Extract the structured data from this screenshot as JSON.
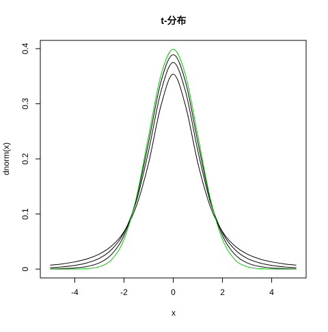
{
  "chart_data": {
    "type": "line",
    "title": "t-分布",
    "x_label": "x",
    "y_label": "dnorm(x)",
    "x": [
      -5,
      -4.5,
      -4,
      -3.5,
      -3,
      -2.5,
      -2,
      -1.5,
      -1,
      -0.5,
      0,
      0.5,
      1,
      1.5,
      2,
      2.5,
      3,
      3.5,
      4,
      4.5,
      5
    ],
    "series": [
      {
        "color": "#000000",
        "values": [
          0.0071,
          0.0095,
          0.0131,
          0.0186,
          0.0274,
          0.0422,
          0.068,
          0.1141,
          0.1925,
          0.2963,
          0.3536,
          0.2963,
          0.1925,
          0.1141,
          0.068,
          0.0422,
          0.0274,
          0.0186,
          0.0131,
          0.0095,
          0.0071
        ]
      },
      {
        "color": "#000000",
        "values": [
          0.0026,
          0.0041,
          0.0067,
          0.0113,
          0.0197,
          0.0357,
          0.0663,
          0.1229,
          0.2147,
          0.3222,
          0.375,
          0.3222,
          0.2147,
          0.1229,
          0.0663,
          0.0357,
          0.0197,
          0.0113,
          0.0067,
          0.0041,
          0.0026
        ]
      },
      {
        "color": "#000000",
        "values": [
          0.0004,
          0.0009,
          0.002,
          0.0048,
          0.0114,
          0.0269,
          0.0611,
          0.1274,
          0.2304,
          0.3397,
          0.3891,
          0.3397,
          0.2304,
          0.1274,
          0.0611,
          0.0269,
          0.0114,
          0.0048,
          0.002,
          0.0009,
          0.0004
        ]
      },
      {
        "color": "#00cc00",
        "values": [
          0.0,
          0.0,
          0.0001,
          0.0009,
          0.0044,
          0.0175,
          0.054,
          0.1295,
          0.242,
          0.3521,
          0.3989,
          0.3521,
          0.242,
          0.1295,
          0.054,
          0.0175,
          0.0044,
          0.0009,
          0.0001,
          0.0,
          0.0
        ]
      }
    ],
    "xlim": [
      -5.4,
      5.4
    ],
    "ylim": [
      -0.016,
      0.415
    ],
    "xticks": [
      -4,
      -2,
      0,
      2,
      4
    ],
    "yticks": [
      0,
      0.1,
      0.2,
      0.3,
      0.4
    ]
  }
}
